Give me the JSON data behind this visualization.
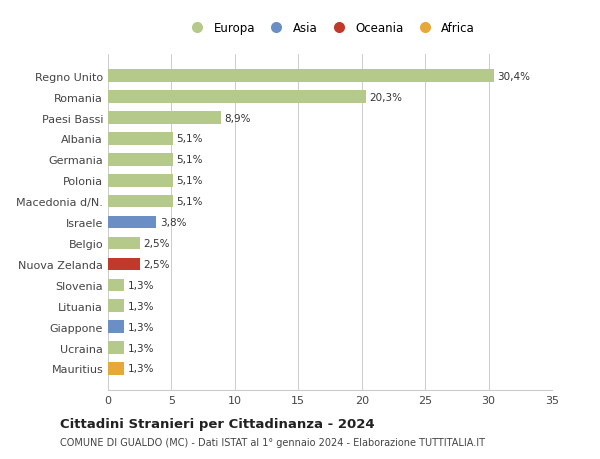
{
  "categories": [
    "Mauritius",
    "Ucraina",
    "Giappone",
    "Lituania",
    "Slovenia",
    "Nuova Zelanda",
    "Belgio",
    "Israele",
    "Macedonia d/N.",
    "Polonia",
    "Germania",
    "Albania",
    "Paesi Bassi",
    "Romania",
    "Regno Unito"
  ],
  "values": [
    1.3,
    1.3,
    1.3,
    1.3,
    1.3,
    2.5,
    2.5,
    3.8,
    5.1,
    5.1,
    5.1,
    5.1,
    8.9,
    20.3,
    30.4
  ],
  "labels": [
    "1,3%",
    "1,3%",
    "1,3%",
    "1,3%",
    "1,3%",
    "2,5%",
    "2,5%",
    "3,8%",
    "5,1%",
    "5,1%",
    "5,1%",
    "5,1%",
    "8,9%",
    "20,3%",
    "30,4%"
  ],
  "colors": [
    "#e8a838",
    "#b5c98a",
    "#6b8fc4",
    "#b5c98a",
    "#b5c98a",
    "#c0392b",
    "#b5c98a",
    "#6b8fc4",
    "#b5c98a",
    "#b5c98a",
    "#b5c98a",
    "#b5c98a",
    "#b5c98a",
    "#b5c98a",
    "#b5c98a"
  ],
  "legend_labels": [
    "Europa",
    "Asia",
    "Oceania",
    "Africa"
  ],
  "legend_colors": [
    "#b5c98a",
    "#6b8fc4",
    "#c0392b",
    "#e8a838"
  ],
  "title": "Cittadini Stranieri per Cittadinanza - 2024",
  "subtitle": "COMUNE DI GUALDO (MC) - Dati ISTAT al 1° gennaio 2024 - Elaborazione TUTTITALIA.IT",
  "xlim": [
    0,
    35
  ],
  "xticks": [
    0,
    5,
    10,
    15,
    20,
    25,
    30,
    35
  ],
  "background_color": "#ffffff"
}
